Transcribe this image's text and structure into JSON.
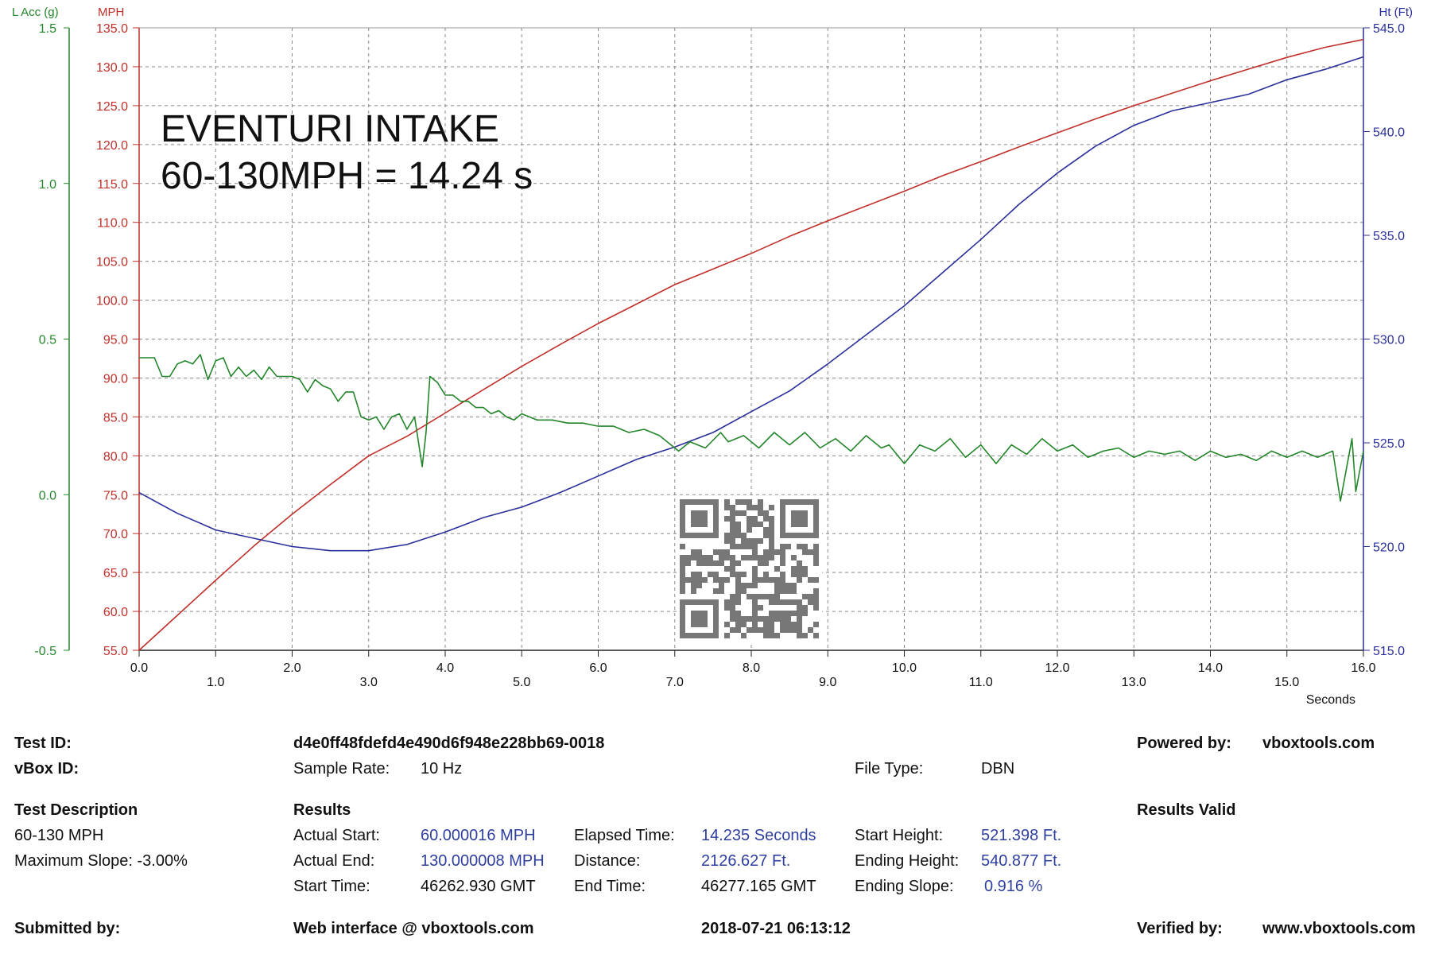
{
  "chart_data": {
    "type": "line",
    "overlay_title": "EVENTURI INTAKE",
    "overlay_subtitle": "60-130MPH = 14.24 s",
    "xlabel": "Seconds",
    "xlim": [
      0,
      16
    ],
    "x_ticks": [
      "0.0",
      "1.0",
      "2.0",
      "3.0",
      "4.0",
      "5.0",
      "6.0",
      "7.0",
      "8.0",
      "9.0",
      "10.0",
      "11.0",
      "12.0",
      "13.0",
      "14.0",
      "15.0",
      "16.0"
    ],
    "grid": true,
    "colors": {
      "speed": "#c0302a",
      "height": "#2a2f9a",
      "accel": "#23862a"
    },
    "axes": {
      "accel": {
        "label": "L Acc (g)",
        "ylim": [
          -0.5,
          1.5
        ],
        "ticks": [
          "-0.5",
          "0.0",
          "0.5",
          "1.0",
          "1.5"
        ]
      },
      "speed": {
        "label": "MPH",
        "ylim": [
          55,
          135
        ],
        "ticks": [
          "55.0",
          "60.0",
          "65.0",
          "70.0",
          "75.0",
          "80.0",
          "85.0",
          "90.0",
          "95.0",
          "100.0",
          "105.0",
          "110.0",
          "115.0",
          "120.0",
          "125.0",
          "130.0",
          "135.0"
        ]
      },
      "height": {
        "label": "Ht (Ft)",
        "ylim": [
          515,
          545
        ],
        "ticks": [
          "515.0",
          "520.0",
          "525.0",
          "530.0",
          "535.0",
          "540.0",
          "545.0"
        ]
      }
    },
    "series": [
      {
        "name": "MPH",
        "axis": "speed",
        "x": [
          0,
          0.5,
          1,
          1.5,
          2,
          2.5,
          3,
          3.5,
          4,
          4.5,
          5,
          5.5,
          6,
          6.5,
          7,
          7.5,
          8,
          8.5,
          9,
          9.5,
          10,
          10.5,
          11,
          11.5,
          12,
          12.5,
          13,
          13.5,
          14,
          14.5,
          15,
          15.5,
          16
        ],
        "y": [
          55,
          59.5,
          64,
          68.4,
          72.5,
          76.3,
          80,
          82.5,
          85.5,
          88.5,
          91.5,
          94.3,
          97,
          99.5,
          102,
          104,
          106,
          108.2,
          110.2,
          112.1,
          114,
          116,
          117.8,
          119.7,
          121.5,
          123.3,
          125,
          126.6,
          128.2,
          129.7,
          131.2,
          132.5,
          133.5
        ]
      },
      {
        "name": "Ht (Ft)",
        "axis": "height",
        "x": [
          0,
          0.5,
          1,
          1.5,
          2,
          2.5,
          3,
          3.5,
          4,
          4.5,
          5,
          5.5,
          6,
          6.5,
          7,
          7.5,
          8,
          8.5,
          9,
          9.5,
          10,
          10.5,
          11,
          11.5,
          12,
          12.5,
          13,
          13.5,
          14,
          14.5,
          15,
          15.5,
          16
        ],
        "y": [
          522.6,
          521.6,
          520.8,
          520.4,
          520.0,
          519.8,
          519.8,
          520.1,
          520.7,
          521.4,
          521.9,
          522.6,
          523.4,
          524.2,
          524.8,
          525.5,
          526.5,
          527.5,
          528.8,
          530.2,
          531.6,
          533.2,
          534.8,
          536.5,
          538.0,
          539.3,
          540.3,
          541.0,
          541.4,
          541.8,
          542.5,
          543.0,
          543.6
        ]
      },
      {
        "name": "L Acc (g)",
        "axis": "accel",
        "x": [
          0,
          0.1,
          0.2,
          0.3,
          0.4,
          0.5,
          0.6,
          0.7,
          0.8,
          0.9,
          1,
          1.1,
          1.2,
          1.3,
          1.4,
          1.5,
          1.6,
          1.7,
          1.8,
          1.9,
          2,
          2.1,
          2.2,
          2.3,
          2.4,
          2.5,
          2.6,
          2.7,
          2.8,
          2.9,
          3,
          3.1,
          3.2,
          3.3,
          3.4,
          3.5,
          3.6,
          3.7,
          3.75,
          3.8,
          3.9,
          4,
          4.1,
          4.2,
          4.3,
          4.4,
          4.5,
          4.6,
          4.7,
          4.8,
          4.9,
          5,
          5.2,
          5.4,
          5.6,
          5.8,
          6,
          6.2,
          6.4,
          6.6,
          6.8,
          7,
          7.05,
          7.2,
          7.4,
          7.6,
          7.7,
          7.9,
          8.1,
          8.3,
          8.5,
          8.7,
          8.9,
          9.1,
          9.3,
          9.5,
          9.7,
          9.8,
          10,
          10.2,
          10.4,
          10.6,
          10.8,
          11,
          11.2,
          11.4,
          11.6,
          11.8,
          12,
          12.2,
          12.4,
          12.6,
          12.8,
          13,
          13.2,
          13.4,
          13.6,
          13.8,
          14,
          14.2,
          14.4,
          14.6,
          14.8,
          15,
          15.2,
          15.4,
          15.6,
          15.7,
          15.85,
          15.9,
          16
        ],
        "y": [
          0.44,
          0.44,
          0.44,
          0.38,
          0.38,
          0.42,
          0.43,
          0.42,
          0.45,
          0.37,
          0.43,
          0.44,
          0.38,
          0.41,
          0.38,
          0.4,
          0.37,
          0.41,
          0.38,
          0.38,
          0.38,
          0.37,
          0.33,
          0.37,
          0.35,
          0.34,
          0.3,
          0.33,
          0.33,
          0.25,
          0.24,
          0.25,
          0.21,
          0.25,
          0.26,
          0.21,
          0.25,
          0.09,
          0.2,
          0.38,
          0.36,
          0.32,
          0.32,
          0.3,
          0.3,
          0.28,
          0.28,
          0.26,
          0.27,
          0.25,
          0.24,
          0.26,
          0.24,
          0.24,
          0.23,
          0.23,
          0.22,
          0.22,
          0.2,
          0.21,
          0.19,
          0.15,
          0.14,
          0.17,
          0.15,
          0.2,
          0.17,
          0.19,
          0.15,
          0.2,
          0.16,
          0.2,
          0.15,
          0.18,
          0.14,
          0.19,
          0.15,
          0.16,
          0.1,
          0.16,
          0.14,
          0.18,
          0.12,
          0.16,
          0.1,
          0.16,
          0.13,
          0.18,
          0.14,
          0.16,
          0.12,
          0.14,
          0.15,
          0.12,
          0.14,
          0.13,
          0.14,
          0.11,
          0.14,
          0.12,
          0.13,
          0.11,
          0.14,
          0.12,
          0.14,
          0.12,
          0.14,
          -0.02,
          0.18,
          0.01,
          0.14
        ]
      }
    ]
  },
  "qr_code": {
    "label": "qr-code"
  },
  "info": {
    "test_id_label": "Test ID:",
    "test_id_value": "d4e0ff48fdefd4e490d6f948e228bb69-0018",
    "powered_by_label": "Powered by:",
    "powered_by_value": "vboxtools.com",
    "vbox_id_label": "vBox ID:",
    "sample_rate_label": "Sample Rate:",
    "sample_rate_value": "10 Hz",
    "file_type_label": "File Type:",
    "file_type_value": "DBN",
    "test_description_label": "Test Description",
    "results_label": "Results",
    "results_valid_label": "Results Valid",
    "description_line1": "60-130 MPH",
    "description_line2": "Maximum Slope:  -3.00%",
    "actual_start_label": "Actual Start:",
    "actual_start_value": "60.000016 MPH",
    "elapsed_time_label": "Elapsed Time:",
    "elapsed_time_value": "14.235 Seconds",
    "start_height_label": "Start Height:",
    "start_height_value": "521.398 Ft.",
    "actual_end_label": "Actual End:",
    "actual_end_value": "130.000008 MPH",
    "distance_label": "Distance:",
    "distance_value": "2126.627 Ft.",
    "ending_height_label": "Ending Height:",
    "ending_height_value": "540.877 Ft.",
    "start_time_label": "Start Time:",
    "start_time_value": "46262.930 GMT",
    "end_time_label": "End Time:",
    "end_time_value": "46277.165 GMT",
    "ending_slope_label": "Ending Slope:",
    "ending_slope_value": "0.916 %",
    "submitted_by_label": "Submitted by:",
    "web_interface_label": "Web interface @ vboxtools.com",
    "timestamp": "2018-07-21 06:13:12",
    "verified_by_label": "Verified by:",
    "verified_by_value": "www.vboxtools.com"
  }
}
